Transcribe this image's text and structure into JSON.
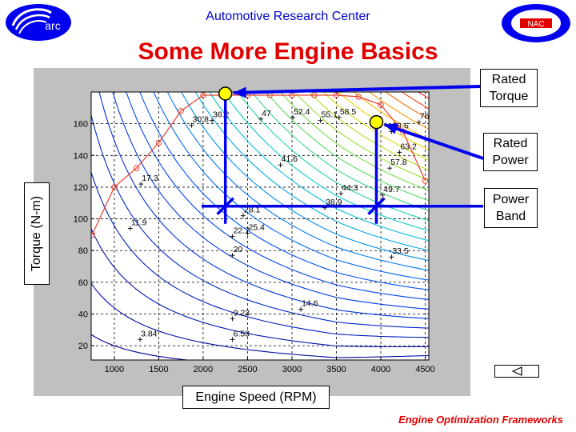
{
  "header": {
    "title": "Automotive Research Center",
    "left_logo_text": "arc",
    "right_logo_text": "NAC"
  },
  "slide": {
    "title": "Some More Engine Basics",
    "footer": "Engine Optimization Frameworks"
  },
  "callouts": {
    "rated_torque": [
      "Rated",
      "Torque"
    ],
    "rated_power": [
      "Rated",
      "Power"
    ],
    "power_band": [
      "Power",
      "Band"
    ]
  },
  "axes": {
    "x_label": "Engine Speed (RPM)",
    "y_label": "Torque (N-m)",
    "x_ticks": [
      1000,
      1500,
      2000,
      2500,
      3000,
      3500,
      4000,
      4500
    ],
    "y_ticks": [
      20,
      40,
      60,
      80,
      100,
      120,
      140,
      160
    ]
  },
  "colors": {
    "title_red": "#e00000",
    "header_blue": "#0000cc",
    "arrow_blue": "#0000ee",
    "marker_yellow": "#ffff00",
    "full_load_curve": "#e84030"
  },
  "chart_data": {
    "type": "contour",
    "x_range": [
      740,
      4540
    ],
    "y_range": [
      11,
      180
    ],
    "full_load_curve": {
      "x": [
        750,
        1000,
        1250,
        1500,
        1750,
        2000,
        2250,
        2500,
        2750,
        3000,
        3250,
        3500,
        3750,
        4000,
        4250,
        4500
      ],
      "y": [
        90,
        120,
        132,
        148,
        168,
        178,
        178,
        178,
        178,
        178,
        178,
        178,
        177,
        172,
        155,
        124
      ]
    },
    "contour_labels": [
      {
        "text": "3.84",
        "x": 1290,
        "y": 27
      },
      {
        "text": "6.53",
        "x": 2330,
        "y": 27
      },
      {
        "text": "9.23",
        "x": 2330,
        "y": 40
      },
      {
        "text": "11.9",
        "x": 1180,
        "y": 97
      },
      {
        "text": "14.6",
        "x": 3100,
        "y": 46
      },
      {
        "text": "17.3",
        "x": 1300,
        "y": 125
      },
      {
        "text": "20",
        "x": 2330,
        "y": 80
      },
      {
        "text": "22.7",
        "x": 2330,
        "y": 92
      },
      {
        "text": "25.4",
        "x": 2500,
        "y": 94
      },
      {
        "text": "28.1",
        "x": 2450,
        "y": 105
      },
      {
        "text": "30.8",
        "x": 1870,
        "y": 162
      },
      {
        "text": "33.5",
        "x": 4120,
        "y": 79
      },
      {
        "text": "36.2",
        "x": 2100,
        "y": 165
      },
      {
        "text": "38.9",
        "x": 3370,
        "y": 110
      },
      {
        "text": "41.6",
        "x": 2870,
        "y": 137
      },
      {
        "text": "44.3",
        "x": 3550,
        "y": 119
      },
      {
        "text": "47",
        "x": 2650,
        "y": 166
      },
      {
        "text": "49.7",
        "x": 4020,
        "y": 118
      },
      {
        "text": "52.4",
        "x": 3010,
        "y": 167
      },
      {
        "text": "55.1",
        "x": 3320,
        "y": 165
      },
      {
        "text": "57.8",
        "x": 4100,
        "y": 135
      },
      {
        "text": "58.5",
        "x": 3530,
        "y": 167
      },
      {
        "text": "63.2",
        "x": 4210,
        "y": 145
      },
      {
        "text": "68.6",
        "x": 4120,
        "y": 158
      },
      {
        "text": "76",
        "x": 4430,
        "y": 164
      }
    ],
    "rated_torque_point": {
      "x": 2250,
      "y": 179
    },
    "rated_power_point": {
      "x": 3950,
      "y": 161
    },
    "power_band": {
      "x_low": 2250,
      "x_high": 3950,
      "y": 108
    }
  }
}
